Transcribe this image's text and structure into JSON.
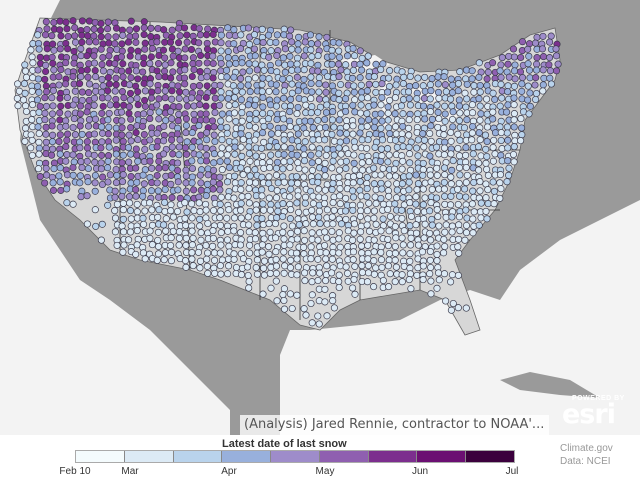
{
  "map": {
    "title_legend": "Latest date of last snow",
    "credit": "(Analysis) Jared Rennie, contractor to NOAA'...",
    "esri_powered": "POWERED BY",
    "esri_word": "esri",
    "source_line1": "Climate.gov",
    "source_line2": "Data: NCEI",
    "legend_colors": [
      "#f4fbfd",
      "#dceaf5",
      "#b9d3ec",
      "#98b0dc",
      "#9e8cca",
      "#8f5fb0",
      "#7c2e8e",
      "#6b0f72",
      "#3b003d"
    ],
    "legend_ticks": [
      "Feb 10",
      "Mar",
      "Apr",
      "May",
      "Jun",
      "Jul"
    ],
    "land_color": "#d7d7d7",
    "water_color": "#f3f3f3",
    "outer_land_color": "#9a9a9a",
    "station_stroke": "#3a3a4a"
  }
}
